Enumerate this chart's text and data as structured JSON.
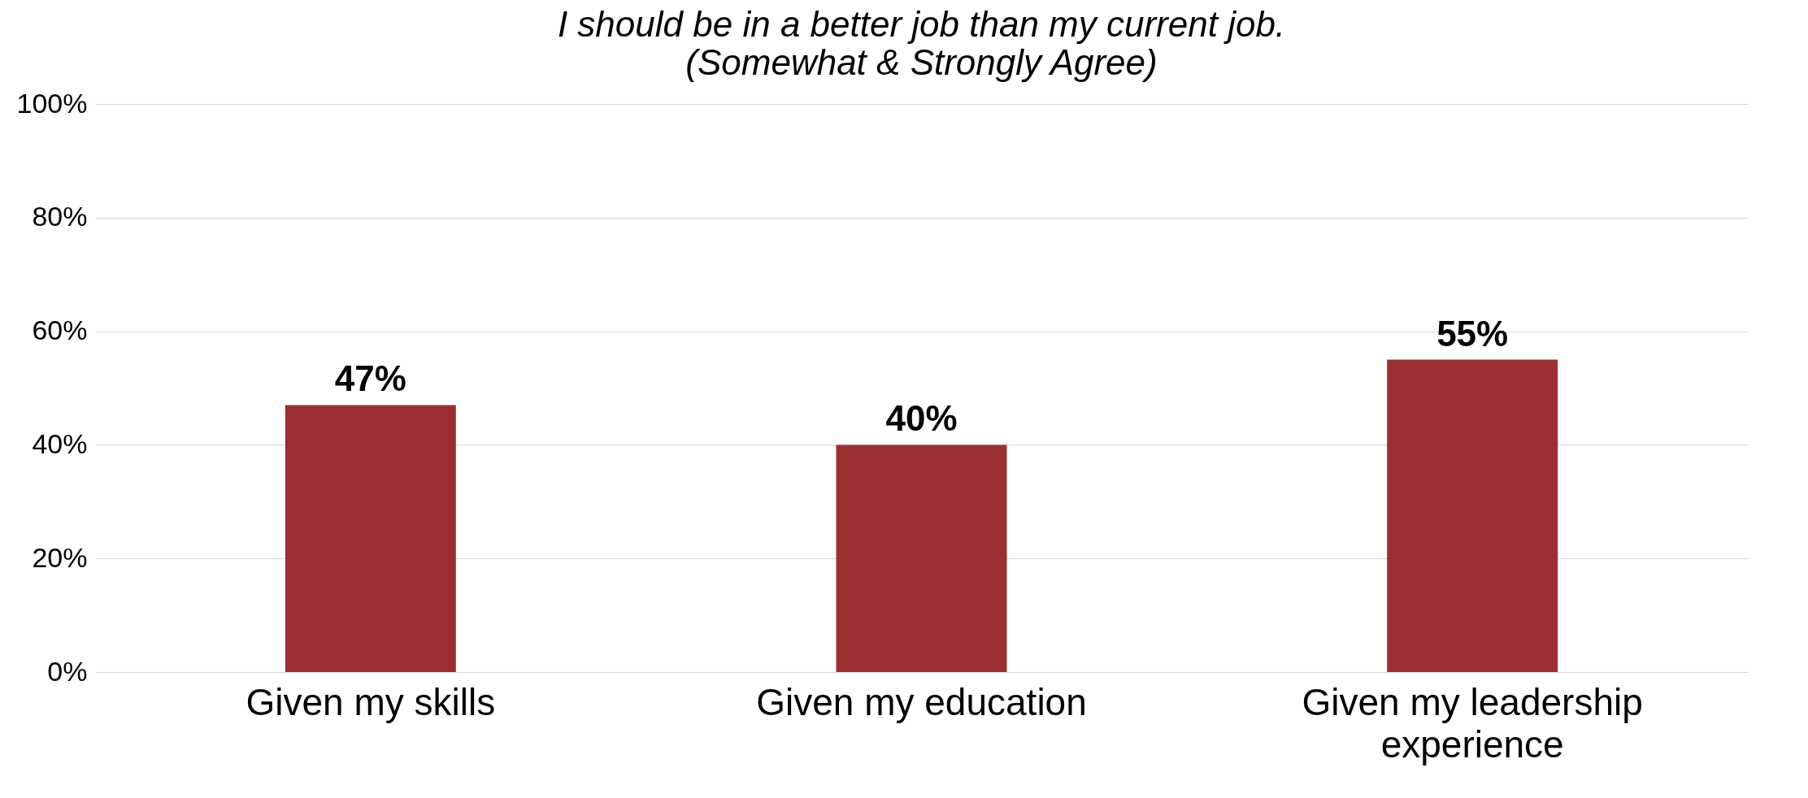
{
  "chart_data": {
    "type": "bar",
    "title": "I should be in a better job than my current job.",
    "subtitle": "(Somewhat & Strongly Agree)",
    "categories": [
      "Given my skills",
      "Given my education",
      "Given my leadership experience"
    ],
    "values": [
      47,
      40,
      55
    ],
    "color": "#9b3032",
    "ylim": [
      0,
      100
    ],
    "yticks": [
      {
        "value": 0,
        "label": "0%"
      },
      {
        "value": 20,
        "label": "20%"
      },
      {
        "value": 40,
        "label": "40%"
      },
      {
        "value": 60,
        "label": "60%"
      },
      {
        "value": 80,
        "label": "80%"
      },
      {
        "value": 100,
        "label": "100%"
      }
    ],
    "value_labels": [
      "47%",
      "40%",
      "55%"
    ],
    "grid": "y"
  }
}
